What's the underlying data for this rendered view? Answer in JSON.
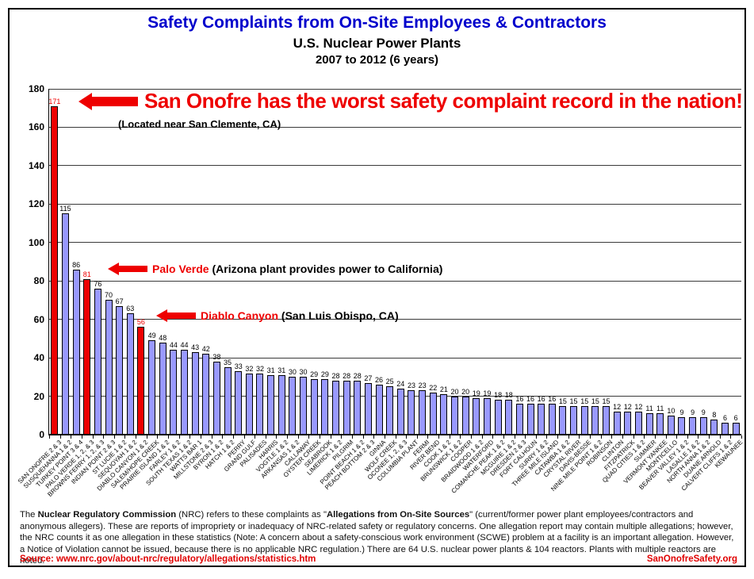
{
  "header": {
    "title": "Safety Complaints from On-Site Employees & Contractors",
    "subtitle": "U.S. Nuclear Power Plants",
    "period": "2007 to 2012 (6 years)"
  },
  "chart_data": {
    "type": "bar",
    "title": "Safety Complaints from On-Site Employees & Contractors, U.S. Nuclear Power Plants, 2007 to 2012 (6 years)",
    "xlabel": "",
    "ylabel": "",
    "ylim": [
      0,
      180
    ],
    "ytick_step": 20,
    "grid": true,
    "legend": "none",
    "bar_color": "#9999FF",
    "highlight_color": "#EE0000",
    "highlight_indices": [
      0,
      3,
      8
    ],
    "categories": [
      "SAN ONOFRE 2 & 3",
      "SUSQUEHANNA 1 & 2",
      "TURKEY POINT 3 & 4",
      "PALO VERDE 1, 2, & 3",
      "BROWNS FERRY 1, 2, & 3",
      "INDIAN POINT 2 & 3",
      "ST LUCIE 1 & 2",
      "SEQUOYAH 1 & 2",
      "DIABLO CANYON 1 & 2",
      "SALEM/HOPE CREEK",
      "PRAIRIE ISLAND 1 & 2",
      "FARLEY 1 & 2",
      "SOUTH TEXAS 1 & 2",
      "WATTS BAR 1",
      "MILLSTONE 2 & 3",
      "BYRON 1 & 2",
      "HATCH 1 & 2",
      "PERRY",
      "GRAND GULF",
      "PALISADES",
      "HARRIS",
      "VOGTLE 1 & 2",
      "ARKANSAS 1 & 2",
      "CALLAWAY",
      "OYSTER CREEK",
      "SEABROOK",
      "LIMERICK 1 & 2",
      "PILGRIM",
      "POINT BEACH 1 & 2",
      "PEACH BOTTOM 2 & 3",
      "GINNA",
      "WOLF CREEK",
      "OCONEE 1, 2, & 3",
      "COLUMBIA PLANT",
      "FERMI",
      "RIVER BEND",
      "COOK 1 & 2",
      "BRUNSWICK 1 & 2",
      "COOPER",
      "BRAIDWOOD 1 & 2",
      "WATERFORD",
      "COMANCHE PEAK 1 & 2",
      "MCGUIRE 1 & 2",
      "DRESDEN 2 & 3",
      "FORT CALHOUN",
      "SURRY 1 & 2",
      "THREE MILE ISLAND",
      "CATAWBA 1 & 2",
      "CRYSTAL RIVER",
      "DAVIS-BESSE",
      "NINE MILE POINT 1 & 2",
      "ROBINSON",
      "CLINTON",
      "FITZPATRICK",
      "QUAD CITIES 1 & 2",
      "SUMMER",
      "VERMONT YANKEE",
      "MONTICELLO",
      "BEAVER VALLEY 1 & 2",
      "LASALLE 1 & 2",
      "NORTH ANNA 1 & 2",
      "DUANE ARNOLD",
      "CALVERT CLIFFS 1 & 2",
      "KEWAUNEE"
    ],
    "values": [
      171,
      115,
      86,
      81,
      76,
      70,
      67,
      63,
      56,
      49,
      48,
      44,
      44,
      43,
      42,
      38,
      35,
      33,
      32,
      32,
      31,
      31,
      30,
      30,
      29,
      29,
      28,
      28,
      28,
      27,
      26,
      25,
      24,
      23,
      23,
      22,
      21,
      20,
      20,
      19,
      19,
      18,
      18,
      16,
      16,
      16,
      16,
      15,
      15,
      15,
      15,
      15,
      12,
      12,
      12,
      11,
      11,
      10,
      9,
      9,
      9,
      8,
      6,
      6
    ]
  },
  "annotations": {
    "san_onofre": {
      "headline": "San Onofre has the worst safety complaint record in the nation!",
      "sub": "(Located near San Clemente, CA)"
    },
    "palo_verde": {
      "name": "Palo Verde",
      "detail": "(Arizona plant provides power to California)"
    },
    "diablo_canyon": {
      "name": "Diablo Canyon",
      "detail": "(San Luis Obispo, CA)"
    }
  },
  "footer": {
    "paragraph": [
      {
        "text": "The ",
        "bold": false
      },
      {
        "text": "Nuclear Regulatory Commission",
        "bold": true
      },
      {
        "text": " (NRC) refers to these complaints as \"",
        "bold": false
      },
      {
        "text": "Allegations from On-Site Sources",
        "bold": true
      },
      {
        "text": "\" (current/former power plant employees/contractors and anonymous allegers). These are reports of impropriety or inadequacy of NRC-related safety or regulatory concerns.  One allegation report may contain multiple allegations; however, the NRC counts it as one allegation in these statistics (Note: A concern about a safety-conscious work environment (SCWE) problem at a facility is an important allegation. However, a Notice of Violation cannot be issued, because there is no applicable NRC regulation.)  There are 64 U.S. nuclear power plants & 104 reactors. Plants with multiple reactors are noted.",
        "bold": false
      }
    ],
    "source": "Source: www.nrc.gov/about-nrc/regulatory/allegations/statistics.htm",
    "site": "SanOnofreSafety.org"
  }
}
